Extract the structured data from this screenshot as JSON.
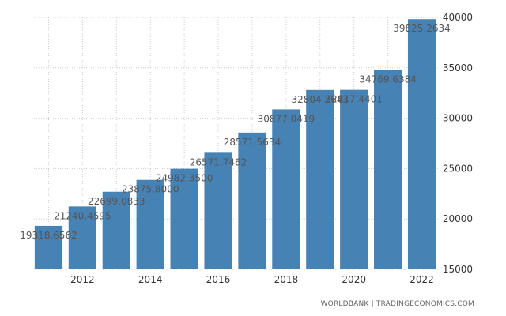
{
  "source": "WORLDBANK | TRADINGECONOMICS.COM",
  "colors": {
    "bar": "#4682b4",
    "grid": "#cccccc",
    "background": "#ffffff"
  },
  "chart_data": {
    "type": "bar",
    "title": "",
    "xlabel": "",
    "ylabel": "",
    "categories": [
      "2011",
      "2012",
      "2013",
      "2014",
      "2015",
      "2016",
      "2017",
      "2018",
      "2019",
      "2020",
      "2021",
      "2022"
    ],
    "values": [
      19318.6562,
      21240.4595,
      22699.0833,
      23875.8,
      24982.35,
      26571.7462,
      28571.5634,
      30877.0419,
      32804.2643,
      32817.4401,
      34769.6384,
      39825.2634
    ],
    "value_labels": [
      "19318.6562",
      "21240.4595",
      "22699.0833",
      "23875.8000",
      "24982.3500",
      "26571.7462",
      "28571.5634",
      "30877.0419",
      "32804.2643",
      "32817.4401",
      "34769.6384",
      "39825.2634"
    ],
    "x_tick_labels": [
      "2012",
      "2014",
      "2016",
      "2018",
      "2020",
      "2022"
    ],
    "y_ticks": [
      15000,
      20000,
      25000,
      30000,
      35000,
      40000
    ],
    "ylim": [
      15000,
      40000
    ],
    "y_axis_position": "right",
    "grid": "dotted",
    "legend": "none"
  }
}
